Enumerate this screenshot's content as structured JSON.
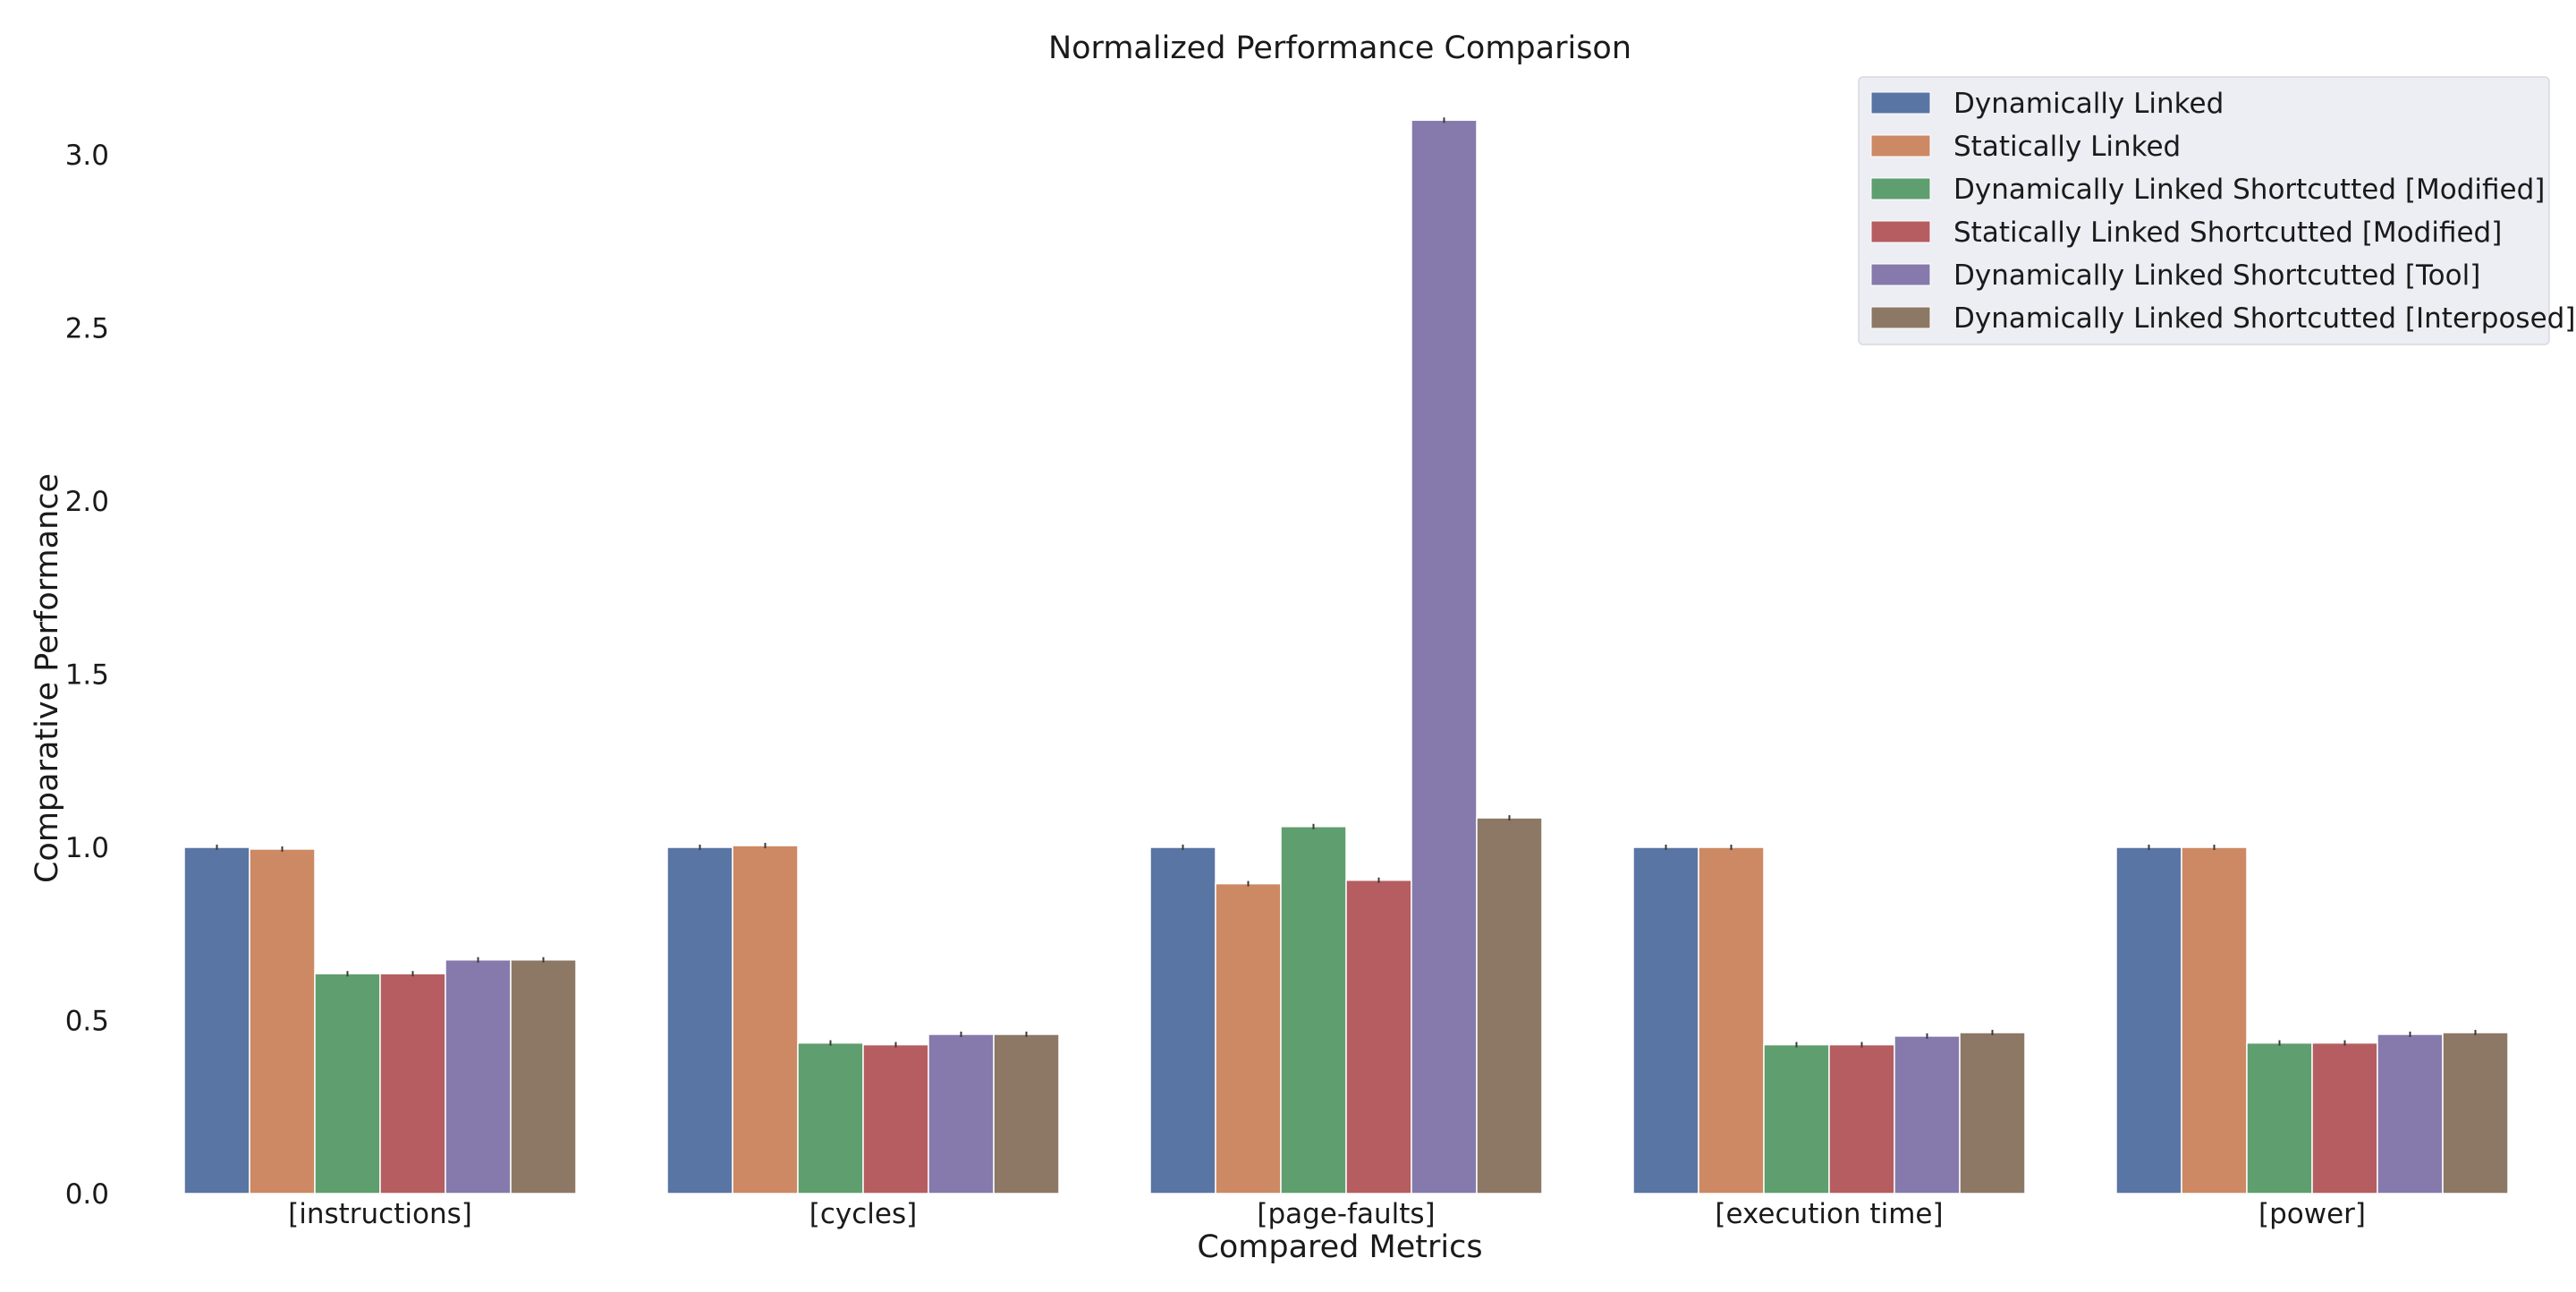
{
  "chart_data": {
    "type": "bar",
    "title": "Normalized Performance Comparison",
    "xlabel": "Compared Metrics",
    "ylabel": "Comparative Performance",
    "categories": [
      "[instructions]",
      "[cycles]",
      "[page-faults]",
      "[execution time]",
      "[power]"
    ],
    "ylim": [
      0,
      3.2
    ],
    "yticks": [
      "0.0",
      "0.5",
      "1.0",
      "1.5",
      "2.0",
      "2.5",
      "3.0"
    ],
    "grid": false,
    "legend_position": "top-right",
    "series": [
      {
        "name": "Dynamically Linked",
        "color": "#5975a4",
        "values": [
          1.0,
          1.0,
          1.0,
          1.0,
          1.0
        ]
      },
      {
        "name": "Statically Linked",
        "color": "#cc8963",
        "values": [
          0.995,
          1.005,
          0.895,
          1.0,
          1.0
        ]
      },
      {
        "name": "Dynamically Linked Shortcutted [Modified]",
        "color": "#5f9e6e",
        "values": [
          0.635,
          0.435,
          1.06,
          0.43,
          0.435
        ]
      },
      {
        "name": "Statically Linked Shortcutted [Modified]",
        "color": "#b55d60",
        "values": [
          0.635,
          0.43,
          0.905,
          0.43,
          0.435
        ]
      },
      {
        "name": "Dynamically Linked Shortcutted [Tool]",
        "color": "#857aab",
        "values": [
          0.675,
          0.46,
          3.1,
          0.455,
          0.46
        ]
      },
      {
        "name": "Dynamically Linked Shortcutted [Interposed]",
        "color": "#8d7866",
        "values": [
          0.675,
          0.46,
          1.085,
          0.465,
          0.465
        ]
      }
    ]
  }
}
